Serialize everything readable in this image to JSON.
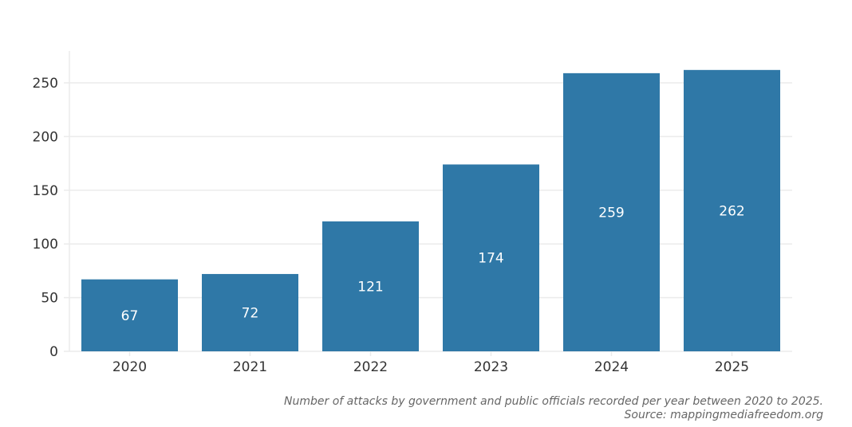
{
  "chart_data": {
    "type": "bar",
    "categories": [
      "2020",
      "2021",
      "2022",
      "2023",
      "2024",
      "2025"
    ],
    "values": [
      67,
      72,
      121,
      174,
      259,
      262
    ],
    "title": "",
    "xlabel": "",
    "ylabel": "",
    "ylim": [
      0,
      280
    ],
    "yticks": [
      0,
      50,
      100,
      150,
      200,
      250
    ],
    "grid": true,
    "bar_color": "#2f78a7",
    "data_labels": [
      "67",
      "72",
      "121",
      "174",
      "259",
      "262"
    ]
  },
  "caption": {
    "line1": "Number of attacks by government and public officials recorded per year between 2020 to 2025.",
    "line2": "Source: mappingmediafreedom.org"
  }
}
